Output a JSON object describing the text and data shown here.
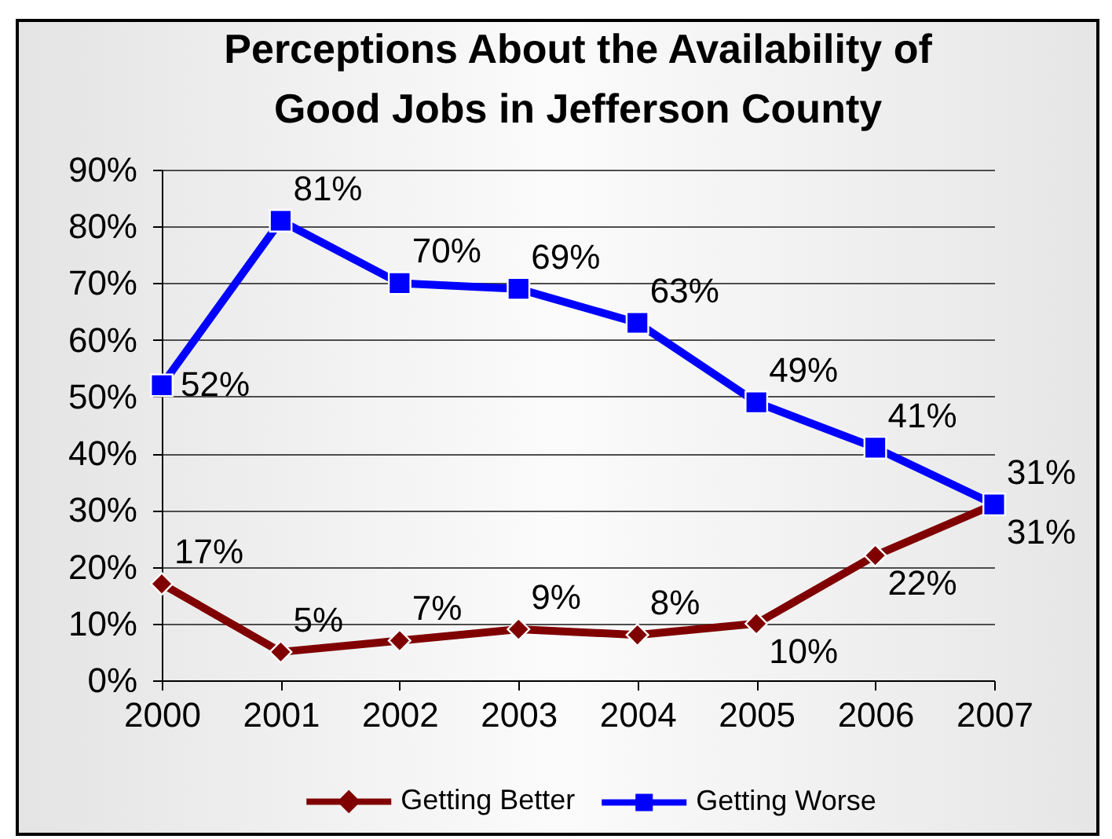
{
  "chart_data": {
    "type": "line",
    "title": "Perceptions About the Availability of Good Jobs in Jefferson County",
    "categories": [
      "2000",
      "2001",
      "2002",
      "2003",
      "2004",
      "2005",
      "2006",
      "2007"
    ],
    "series": [
      {
        "name": "Getting Better",
        "color": "#800000",
        "marker": "diamond",
        "values": [
          17,
          5,
          7,
          9,
          8,
          10,
          22,
          31
        ],
        "value_labels": [
          "17%",
          "5%",
          "7%",
          "9%",
          "8%",
          "10%",
          "22%",
          "31%"
        ]
      },
      {
        "name": "Getting Worse",
        "color": "#0000ff",
        "marker": "square",
        "values": [
          52,
          81,
          70,
          69,
          63,
          49,
          41,
          31
        ],
        "value_labels": [
          "52%",
          "81%",
          "70%",
          "69%",
          "63%",
          "49%",
          "41%",
          "31%"
        ]
      }
    ],
    "ylim": [
      0,
      90
    ],
    "yticks": [
      {
        "value": 0,
        "label": "0%"
      },
      {
        "value": 10,
        "label": "10%"
      },
      {
        "value": 20,
        "label": "20%"
      },
      {
        "value": 30,
        "label": "30%"
      },
      {
        "value": 40,
        "label": "40%"
      },
      {
        "value": 50,
        "label": "50%"
      },
      {
        "value": 60,
        "label": "60%"
      },
      {
        "value": 70,
        "label": "70%"
      },
      {
        "value": 80,
        "label": "80%"
      },
      {
        "value": 90,
        "label": "90%"
      }
    ],
    "grid": "y",
    "legend": "bottom"
  }
}
